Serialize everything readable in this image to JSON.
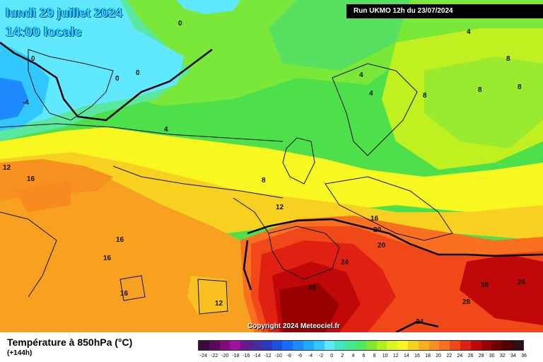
{
  "map": {
    "title_line1": "lundi 29 juillet 2024",
    "title_line2": "14:00 locale",
    "run_info": "Run UKMO 12h du 23/07/2024",
    "copyright": "Copyright 2024 Meteociel.fr",
    "contour_labels": [
      "0",
      "0",
      "0",
      "0",
      "-4",
      "4",
      "4",
      "4",
      "4",
      "8",
      "8",
      "8",
      "8",
      "8",
      "8",
      "12",
      "12",
      "12",
      "16",
      "16",
      "16",
      "16",
      "16",
      "20",
      "20",
      "24",
      "24",
      "28",
      "28",
      "28",
      "28"
    ]
  },
  "legend": {
    "title": "Température à 850hPa (°C)",
    "subtitle": "(+144h)",
    "scale_labels": [
      "-24",
      "-22",
      "-20",
      "-18",
      "-16",
      "-14",
      "-12",
      "-10",
      "-8",
      "-6",
      "-4",
      "-2",
      "0",
      "2",
      "4",
      "6",
      "8",
      "10",
      "12",
      "14",
      "16",
      "18",
      "20",
      "22",
      "24",
      "26",
      "28",
      "30",
      "32",
      "34",
      "36"
    ],
    "scale_colors": [
      "#3a0a3a",
      "#5a0a5a",
      "#800a80",
      "#a010a0",
      "#6a1a8a",
      "#4a2aa0",
      "#2a3ac0",
      "#1a50e0",
      "#1a6aff",
      "#1e8aff",
      "#20aaff",
      "#30c8ff",
      "#60e8ff",
      "#40e8c0",
      "#40e890",
      "#50e860",
      "#80e830",
      "#b0f020",
      "#d8f820",
      "#f8f820",
      "#f8d020",
      "#f8b020",
      "#f89020",
      "#f87020",
      "#f04818",
      "#e02010",
      "#c00808",
      "#980000",
      "#700000",
      "#500000",
      "#301010"
    ]
  }
}
